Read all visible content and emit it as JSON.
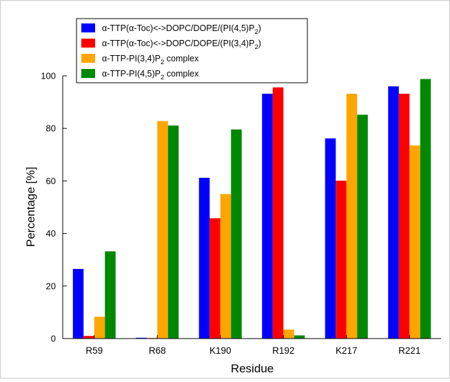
{
  "chart_data": {
    "type": "bar",
    "title": "",
    "xlabel": "Residue",
    "ylabel": "Percentage [%]",
    "ylim": [
      0,
      100
    ],
    "yticks": [
      0,
      20,
      40,
      60,
      80,
      100
    ],
    "categories": [
      "R59",
      "R68",
      "K190",
      "R192",
      "K217",
      "R221"
    ],
    "legend_position": "top-left",
    "grid": false,
    "series": [
      {
        "name_parts": {
          "main": "α-TTP(α-Toc)<->DOPC/DOPE/(PI(4,5)P",
          "sub": "2",
          "tail": ")"
        },
        "color": "#0000ff",
        "values": [
          26.5,
          0.3,
          61.2,
          93.2,
          76.2,
          96.0
        ]
      },
      {
        "name_parts": {
          "main": "α-TTP(α-Toc)<->DOPC/DOPE/(PI(3,4)P",
          "sub": "2",
          "tail": ")"
        },
        "color": "#ff0000",
        "values": [
          1.0,
          0.2,
          45.8,
          95.6,
          60.1,
          93.2
        ]
      },
      {
        "name_parts": {
          "main": "α-TTP-PI(3,4)P",
          "sub": "2",
          "tail": " complex"
        },
        "color": "#ffa500",
        "values": [
          8.3,
          82.8,
          55.0,
          3.4,
          93.2,
          73.5
        ]
      },
      {
        "name_parts": {
          "main": "α-TTP-PI(4,5)P",
          "sub": "2",
          "tail": " complex"
        },
        "color": "#008800",
        "values": [
          33.2,
          81.1,
          79.6,
          1.2,
          85.2,
          98.8
        ]
      }
    ]
  }
}
